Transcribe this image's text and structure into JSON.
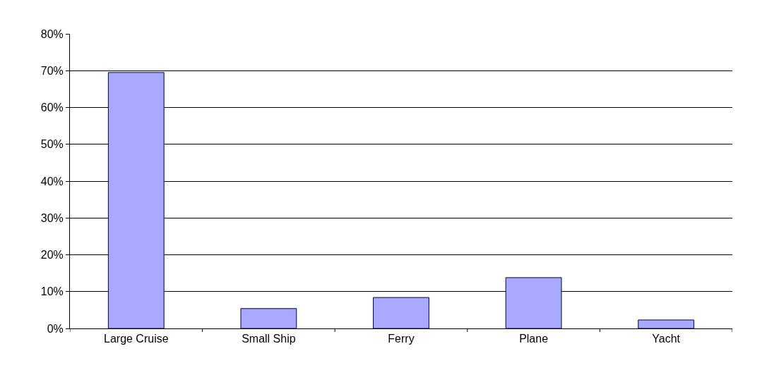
{
  "chart_data": {
    "type": "bar",
    "categories": [
      "Large Cruise",
      "Small Ship",
      "Ferry",
      "Plane",
      "Yacht"
    ],
    "values": [
      69.5,
      5.4,
      8.4,
      13.8,
      2.3
    ],
    "color": "#a9aaff",
    "ylim": [
      0,
      80
    ],
    "yticks": [
      {
        "value": 0,
        "label": "0%"
      },
      {
        "value": 10,
        "label": "10%"
      },
      {
        "value": 20,
        "label": "20%"
      },
      {
        "value": 30,
        "label": "30%"
      },
      {
        "value": 40,
        "label": "40%"
      },
      {
        "value": 50,
        "label": "50%"
      },
      {
        "value": 60,
        "label": "60%"
      },
      {
        "value": 70,
        "label": "70%"
      },
      {
        "value": 80,
        "label": "80%"
      }
    ],
    "grid": "y",
    "legend": false
  }
}
